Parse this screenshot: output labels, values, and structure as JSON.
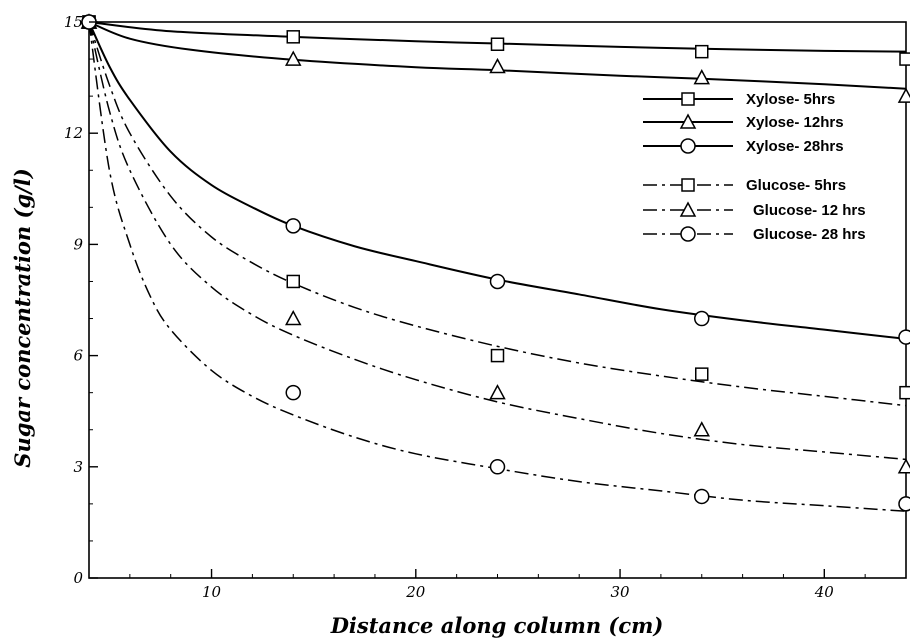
{
  "chart_data": {
    "type": "line",
    "title": "",
    "xlabel": "Distance along column (cm)",
    "ylabel": "Sugar concentration (g/l)",
    "xlim": [
      4,
      44
    ],
    "ylim": [
      0,
      15
    ],
    "x_ticks": [
      10,
      20,
      30,
      40
    ],
    "y_ticks": [
      0,
      3,
      6,
      9,
      12,
      15
    ],
    "grid": false,
    "legend_position": "top-right",
    "series": [
      {
        "name": "Xylose-  5hrs",
        "marker": "square",
        "line_style": "solid",
        "x": [
          4,
          14,
          24,
          34,
          44
        ],
        "y": [
          15,
          14.6,
          14.4,
          14.2,
          14.0
        ],
        "curve": [
          [
            4,
            15.0
          ],
          [
            8,
            14.75
          ],
          [
            14,
            14.6
          ],
          [
            20,
            14.48
          ],
          [
            24,
            14.42
          ],
          [
            30,
            14.33
          ],
          [
            34,
            14.28
          ],
          [
            40,
            14.22
          ],
          [
            44,
            14.2
          ]
        ]
      },
      {
        "name": "Xylose- 12hrs",
        "marker": "triangle",
        "line_style": "solid",
        "x": [
          4,
          14,
          24,
          34,
          44
        ],
        "y": [
          15,
          14.0,
          13.8,
          13.5,
          13.0
        ],
        "curve": [
          [
            4,
            15.0
          ],
          [
            6,
            14.55
          ],
          [
            9,
            14.25
          ],
          [
            14,
            13.98
          ],
          [
            20,
            13.78
          ],
          [
            24,
            13.7
          ],
          [
            30,
            13.55
          ],
          [
            34,
            13.47
          ],
          [
            40,
            13.32
          ],
          [
            44,
            13.2
          ]
        ]
      },
      {
        "name": "Xylose- 28hrs",
        "marker": "circle",
        "line_style": "solid",
        "x": [
          4,
          14,
          24,
          34,
          44
        ],
        "y": [
          15,
          9.5,
          8.0,
          7.0,
          6.5
        ],
        "curve": [
          [
            4,
            15.0
          ],
          [
            5,
            13.8
          ],
          [
            6,
            12.9
          ],
          [
            8,
            11.5
          ],
          [
            10,
            10.6
          ],
          [
            12,
            10.0
          ],
          [
            14,
            9.5
          ],
          [
            17,
            8.95
          ],
          [
            20,
            8.55
          ],
          [
            24,
            8.05
          ],
          [
            28,
            7.65
          ],
          [
            32,
            7.25
          ],
          [
            36,
            6.95
          ],
          [
            40,
            6.7
          ],
          [
            44,
            6.45
          ]
        ]
      },
      {
        "name": "Glucose-  5hrs",
        "marker": "square",
        "line_style": "dashdot",
        "x": [
          4,
          14,
          24,
          34,
          44
        ],
        "y": [
          15,
          8.0,
          6.0,
          5.5,
          5.0
        ],
        "curve": [
          [
            4,
            15.0
          ],
          [
            5,
            13.3
          ],
          [
            6,
            12.0
          ],
          [
            8,
            10.3
          ],
          [
            10,
            9.2
          ],
          [
            12,
            8.5
          ],
          [
            14,
            7.95
          ],
          [
            17,
            7.3
          ],
          [
            20,
            6.8
          ],
          [
            24,
            6.25
          ],
          [
            28,
            5.8
          ],
          [
            32,
            5.45
          ],
          [
            36,
            5.15
          ],
          [
            40,
            4.9
          ],
          [
            44,
            4.65
          ]
        ]
      },
      {
        "name": "Glucose- 12 hrs",
        "marker": "triangle",
        "line_style": "dashdot",
        "x": [
          4,
          14,
          24,
          34,
          44
        ],
        "y": [
          15,
          7.0,
          5.0,
          4.0,
          3.0
        ],
        "curve": [
          [
            4,
            15.0
          ],
          [
            5,
            12.6
          ],
          [
            6,
            11.0
          ],
          [
            8,
            9.0
          ],
          [
            10,
            7.85
          ],
          [
            12,
            7.1
          ],
          [
            14,
            6.55
          ],
          [
            17,
            5.9
          ],
          [
            20,
            5.35
          ],
          [
            24,
            4.75
          ],
          [
            28,
            4.3
          ],
          [
            32,
            3.9
          ],
          [
            36,
            3.6
          ],
          [
            40,
            3.4
          ],
          [
            44,
            3.2
          ]
        ]
      },
      {
        "name": "Glucose- 28 hrs",
        "marker": "circle",
        "line_style": "dashdot",
        "x": [
          4,
          14,
          24,
          34,
          44
        ],
        "y": [
          15,
          5.0,
          3.0,
          2.2,
          2.0
        ],
        "curve": [
          [
            4,
            15.0
          ],
          [
            5,
            11.0
          ],
          [
            6,
            9.0
          ],
          [
            7,
            7.6
          ],
          [
            8,
            6.7
          ],
          [
            10,
            5.6
          ],
          [
            12,
            4.9
          ],
          [
            14,
            4.4
          ],
          [
            17,
            3.8
          ],
          [
            20,
            3.35
          ],
          [
            24,
            2.95
          ],
          [
            28,
            2.6
          ],
          [
            32,
            2.35
          ],
          [
            36,
            2.1
          ],
          [
            40,
            1.95
          ],
          [
            44,
            1.8
          ]
        ]
      }
    ]
  }
}
